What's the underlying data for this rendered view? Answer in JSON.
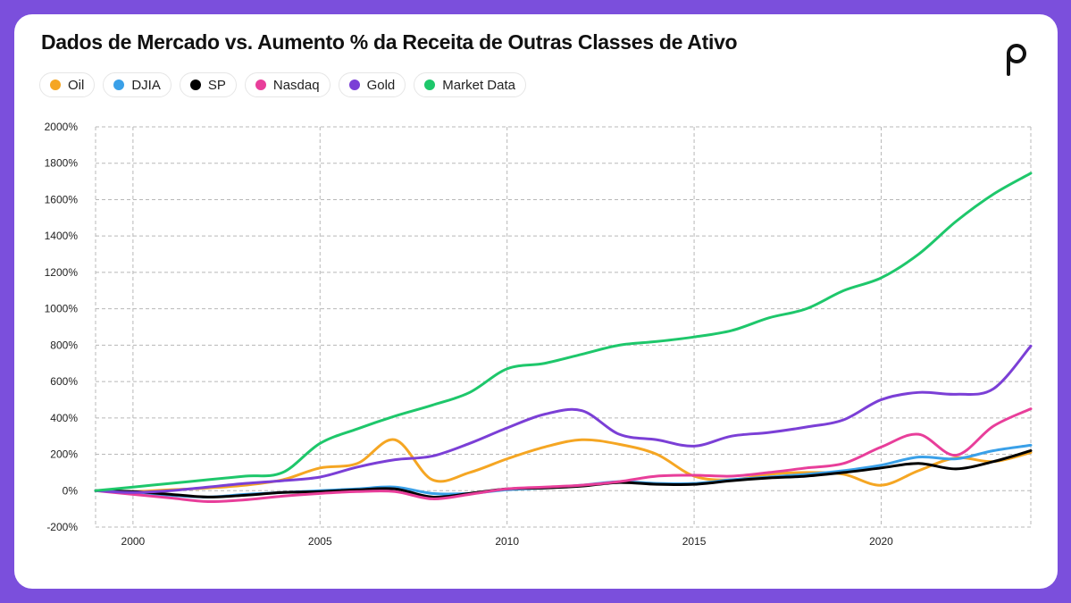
{
  "chart_data": {
    "type": "line",
    "title": "Dados de Mercado vs. Aumento % da Receita de Outras Classes de Ativo",
    "xlabel": "",
    "ylabel": "",
    "xlim": [
      1999,
      2024
    ],
    "ylim": [
      -200,
      2000
    ],
    "x_ticks": [
      2000,
      2005,
      2010,
      2015,
      2020
    ],
    "y_ticks": [
      "2000%",
      "1800%",
      "1600%",
      "1400%",
      "1200%",
      "1000%",
      "800%",
      "600%",
      "400%",
      "200%",
      "0%",
      "-200%"
    ],
    "y_tick_values": [
      2000,
      1800,
      1600,
      1400,
      1200,
      1000,
      800,
      600,
      400,
      200,
      0,
      -200
    ],
    "grid": true,
    "legend_position": "top-left",
    "x": [
      1999,
      2000,
      2001,
      2002,
      2003,
      2004,
      2005,
      2006,
      2007,
      2008,
      2009,
      2010,
      2011,
      2012,
      2013,
      2014,
      2015,
      2016,
      2017,
      2018,
      2019,
      2020,
      2021,
      2022,
      2023,
      2024
    ],
    "series": [
      {
        "name": "Oil",
        "color": "#f5a623",
        "values": [
          0,
          -5,
          5,
          15,
          30,
          60,
          125,
          150,
          280,
          60,
          100,
          175,
          240,
          280,
          255,
          200,
          80,
          60,
          90,
          100,
          90,
          30,
          110,
          180,
          160,
          210
        ]
      },
      {
        "name": "DJIA",
        "color": "#3aa0e8",
        "values": [
          0,
          -10,
          -25,
          -35,
          -20,
          -10,
          0,
          10,
          20,
          -15,
          -15,
          5,
          15,
          30,
          50,
          40,
          40,
          60,
          75,
          90,
          110,
          140,
          185,
          175,
          220,
          250
        ]
      },
      {
        "name": "SP",
        "color": "#000000",
        "values": [
          0,
          -5,
          -20,
          -35,
          -25,
          -10,
          -5,
          5,
          10,
          -35,
          -15,
          10,
          15,
          25,
          45,
          35,
          35,
          55,
          70,
          80,
          100,
          125,
          150,
          120,
          160,
          220
        ]
      },
      {
        "name": "Nasdaq",
        "color": "#e83e9a",
        "values": [
          0,
          -20,
          -40,
          -60,
          -50,
          -30,
          -15,
          -5,
          -5,
          -45,
          -20,
          10,
          20,
          30,
          50,
          80,
          85,
          80,
          100,
          125,
          150,
          240,
          310,
          195,
          355,
          450
        ]
      },
      {
        "name": "Gold",
        "color": "#7b3fd6",
        "values": [
          0,
          -10,
          0,
          20,
          40,
          55,
          75,
          130,
          170,
          190,
          260,
          345,
          420,
          440,
          310,
          280,
          245,
          300,
          320,
          350,
          390,
          500,
          540,
          530,
          560,
          795
        ]
      },
      {
        "name": "Market Data",
        "color": "#1ec76b",
        "values": [
          0,
          20,
          40,
          60,
          80,
          100,
          260,
          340,
          410,
          470,
          540,
          670,
          700,
          750,
          800,
          820,
          845,
          880,
          950,
          1000,
          1100,
          1170,
          1300,
          1480,
          1630,
          1745
        ]
      }
    ]
  },
  "brand": {
    "logo_icon": "p-logo-icon",
    "logo_color": "#111111"
  }
}
